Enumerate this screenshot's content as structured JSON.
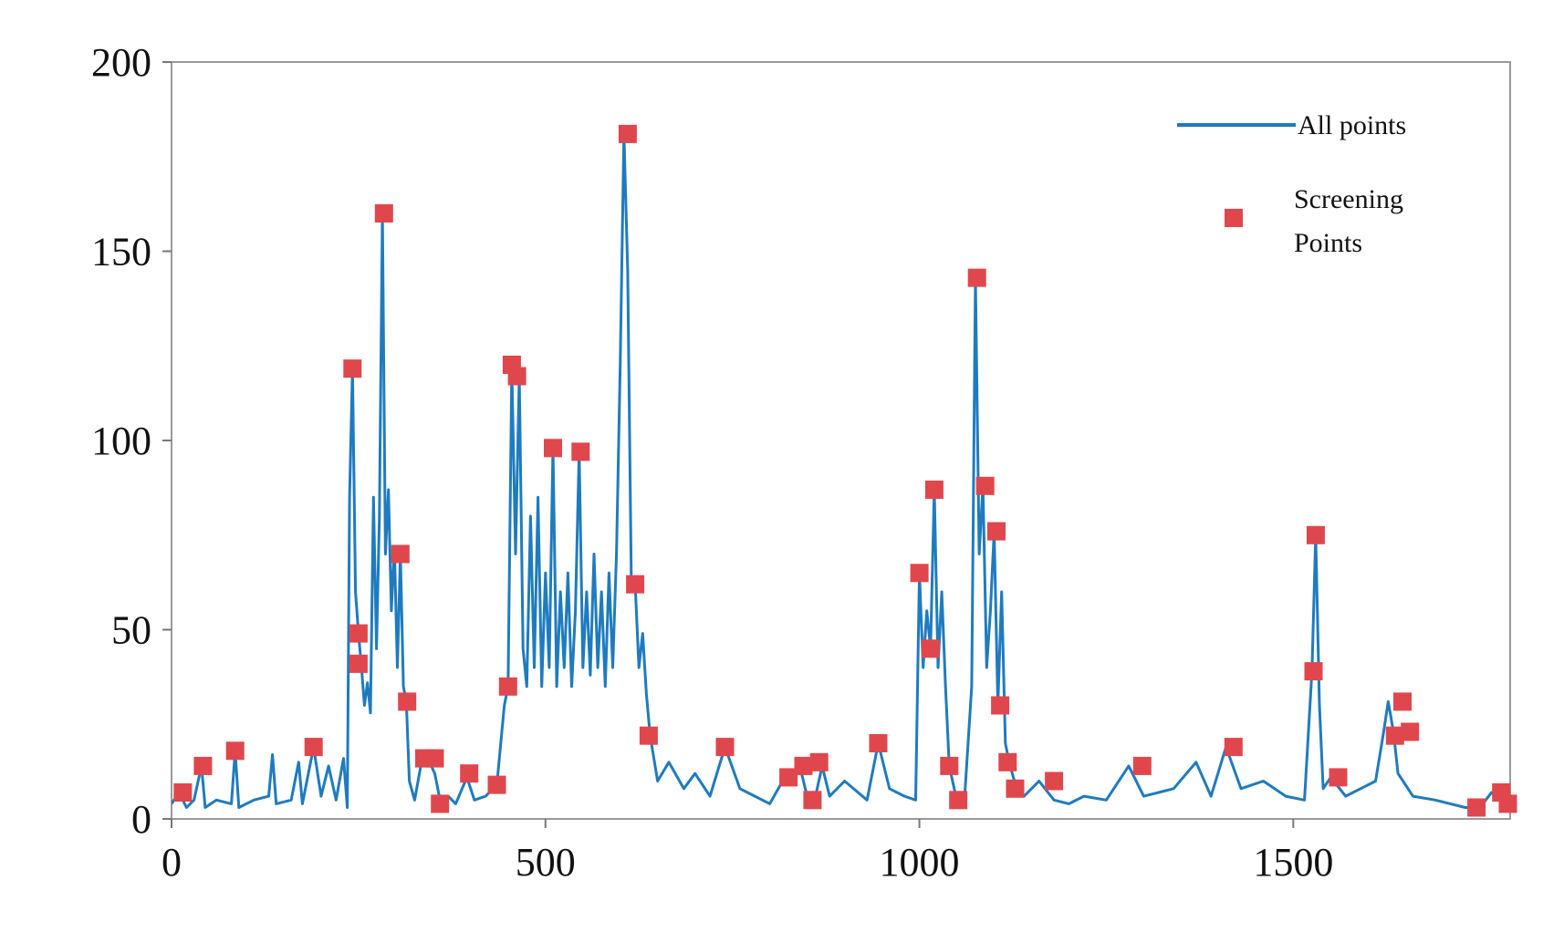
{
  "chart_data": {
    "type": "line",
    "title": "",
    "xlabel": "",
    "ylabel": "",
    "xlim": [
      0,
      1790
    ],
    "ylim": [
      0,
      200
    ],
    "x_ticks": [
      0,
      500,
      1000,
      1500
    ],
    "y_ticks": [
      0,
      50,
      100,
      150,
      200
    ],
    "x_tick_labels": [
      "0",
      "500",
      "1000",
      "1500"
    ],
    "y_tick_labels": [
      "0",
      "50",
      "100",
      "150",
      "200"
    ],
    "grid": false,
    "legend_position": "top-right",
    "colors": {
      "line": "#1f7bbf",
      "marker": "#e0474c"
    },
    "series": [
      {
        "name": "All points",
        "kind": "line",
        "points": [
          [
            0,
            4
          ],
          [
            10,
            7
          ],
          [
            20,
            3
          ],
          [
            30,
            5
          ],
          [
            40,
            14
          ],
          [
            45,
            3
          ],
          [
            60,
            5
          ],
          [
            80,
            4
          ],
          [
            85,
            18
          ],
          [
            90,
            3
          ],
          [
            110,
            5
          ],
          [
            130,
            6
          ],
          [
            135,
            17
          ],
          [
            140,
            4
          ],
          [
            160,
            5
          ],
          [
            170,
            15
          ],
          [
            175,
            4
          ],
          [
            190,
            19
          ],
          [
            200,
            6
          ],
          [
            210,
            14
          ],
          [
            220,
            5
          ],
          [
            230,
            16
          ],
          [
            235,
            3
          ],
          [
            238,
            85
          ],
          [
            242,
            119
          ],
          [
            246,
            60
          ],
          [
            250,
            49
          ],
          [
            254,
            40
          ],
          [
            258,
            30
          ],
          [
            262,
            36
          ],
          [
            266,
            28
          ],
          [
            270,
            85
          ],
          [
            274,
            45
          ],
          [
            278,
            80
          ],
          [
            282,
            160
          ],
          [
            286,
            70
          ],
          [
            290,
            87
          ],
          [
            294,
            55
          ],
          [
            298,
            72
          ],
          [
            302,
            40
          ],
          [
            306,
            70
          ],
          [
            310,
            35
          ],
          [
            314,
            31
          ],
          [
            318,
            10
          ],
          [
            325,
            5
          ],
          [
            335,
            16
          ],
          [
            345,
            15
          ],
          [
            352,
            12
          ],
          [
            360,
            4
          ],
          [
            370,
            6
          ],
          [
            380,
            4
          ],
          [
            395,
            11
          ],
          [
            405,
            5
          ],
          [
            420,
            6
          ],
          [
            435,
            9
          ],
          [
            445,
            30
          ],
          [
            450,
            35
          ],
          [
            455,
            119
          ],
          [
            460,
            70
          ],
          [
            465,
            117
          ],
          [
            470,
            45
          ],
          [
            475,
            35
          ],
          [
            480,
            80
          ],
          [
            485,
            40
          ],
          [
            490,
            85
          ],
          [
            495,
            35
          ],
          [
            500,
            65
          ],
          [
            505,
            40
          ],
          [
            510,
            98
          ],
          [
            515,
            35
          ],
          [
            520,
            60
          ],
          [
            525,
            40
          ],
          [
            530,
            65
          ],
          [
            535,
            35
          ],
          [
            540,
            55
          ],
          [
            545,
            97
          ],
          [
            550,
            40
          ],
          [
            555,
            60
          ],
          [
            560,
            38
          ],
          [
            565,
            70
          ],
          [
            570,
            40
          ],
          [
            575,
            60
          ],
          [
            580,
            35
          ],
          [
            585,
            65
          ],
          [
            590,
            40
          ],
          [
            595,
            70
          ],
          [
            600,
            120
          ],
          [
            605,
            181
          ],
          [
            610,
            145
          ],
          [
            615,
            60
          ],
          [
            620,
            62
          ],
          [
            625,
            40
          ],
          [
            630,
            49
          ],
          [
            635,
            33
          ],
          [
            640,
            22
          ],
          [
            650,
            10
          ],
          [
            665,
            15
          ],
          [
            685,
            8
          ],
          [
            700,
            12
          ],
          [
            720,
            6
          ],
          [
            740,
            19
          ],
          [
            760,
            8
          ],
          [
            780,
            6
          ],
          [
            800,
            4
          ],
          [
            820,
            11
          ],
          [
            840,
            14
          ],
          [
            850,
            6
          ],
          [
            860,
            5
          ],
          [
            870,
            14
          ],
          [
            880,
            6
          ],
          [
            900,
            10
          ],
          [
            930,
            5
          ],
          [
            945,
            20
          ],
          [
            960,
            8
          ],
          [
            980,
            6
          ],
          [
            995,
            5
          ],
          [
            1000,
            65
          ],
          [
            1005,
            40
          ],
          [
            1010,
            55
          ],
          [
            1015,
            45
          ],
          [
            1020,
            87
          ],
          [
            1025,
            40
          ],
          [
            1030,
            60
          ],
          [
            1035,
            35
          ],
          [
            1040,
            14
          ],
          [
            1050,
            5
          ],
          [
            1060,
            4
          ],
          [
            1070,
            35
          ],
          [
            1075,
            143
          ],
          [
            1080,
            70
          ],
          [
            1085,
            88
          ],
          [
            1090,
            40
          ],
          [
            1095,
            55
          ],
          [
            1100,
            76
          ],
          [
            1105,
            30
          ],
          [
            1110,
            60
          ],
          [
            1115,
            20
          ],
          [
            1120,
            15
          ],
          [
            1130,
            8
          ],
          [
            1140,
            6
          ],
          [
            1160,
            10
          ],
          [
            1180,
            5
          ],
          [
            1200,
            4
          ],
          [
            1220,
            6
          ],
          [
            1250,
            5
          ],
          [
            1280,
            14
          ],
          [
            1300,
            6
          ],
          [
            1340,
            8
          ],
          [
            1370,
            15
          ],
          [
            1390,
            6
          ],
          [
            1410,
            19
          ],
          [
            1430,
            8
          ],
          [
            1460,
            10
          ],
          [
            1490,
            6
          ],
          [
            1515,
            5
          ],
          [
            1525,
            39
          ],
          [
            1530,
            75
          ],
          [
            1535,
            30
          ],
          [
            1540,
            8
          ],
          [
            1550,
            11
          ],
          [
            1570,
            6
          ],
          [
            1590,
            8
          ],
          [
            1610,
            10
          ],
          [
            1620,
            22
          ],
          [
            1627,
            31
          ],
          [
            1634,
            23
          ],
          [
            1640,
            12
          ],
          [
            1660,
            6
          ],
          [
            1690,
            5
          ],
          [
            1710,
            4
          ],
          [
            1730,
            3
          ],
          [
            1750,
            3
          ],
          [
            1765,
            7
          ],
          [
            1775,
            5
          ],
          [
            1785,
            3
          ]
        ]
      },
      {
        "name": "Screening Points",
        "kind": "markers",
        "points": [
          [
            15,
            7
          ],
          [
            42,
            14
          ],
          [
            85,
            18
          ],
          [
            190,
            19
          ],
          [
            242,
            119
          ],
          [
            250,
            49
          ],
          [
            250,
            41
          ],
          [
            284,
            160
          ],
          [
            306,
            70
          ],
          [
            315,
            31
          ],
          [
            338,
            16
          ],
          [
            352,
            16
          ],
          [
            359,
            4
          ],
          [
            398,
            12
          ],
          [
            435,
            9
          ],
          [
            450,
            35
          ],
          [
            455,
            120
          ],
          [
            462,
            117
          ],
          [
            510,
            98
          ],
          [
            547,
            97
          ],
          [
            610,
            181
          ],
          [
            620,
            62
          ],
          [
            638,
            22
          ],
          [
            740,
            19
          ],
          [
            825,
            11
          ],
          [
            845,
            14
          ],
          [
            857,
            5
          ],
          [
            866,
            15
          ],
          [
            945,
            20
          ],
          [
            1000,
            65
          ],
          [
            1015,
            45
          ],
          [
            1020,
            87
          ],
          [
            1040,
            14
          ],
          [
            1052,
            5
          ],
          [
            1077,
            143
          ],
          [
            1088,
            88
          ],
          [
            1103,
            76
          ],
          [
            1108,
            30
          ],
          [
            1118,
            15
          ],
          [
            1128,
            8
          ],
          [
            1180,
            10
          ],
          [
            1298,
            14
          ],
          [
            1420,
            19
          ],
          [
            1527,
            39
          ],
          [
            1530,
            75
          ],
          [
            1560,
            11
          ],
          [
            1636,
            22
          ],
          [
            1646,
            31
          ],
          [
            1656,
            23
          ],
          [
            1745,
            3
          ],
          [
            1778,
            7
          ],
          [
            1787,
            4
          ]
        ]
      }
    ]
  },
  "legend": {
    "entries": [
      {
        "lines": [
          "All points"
        ]
      },
      {
        "lines": [
          "Screening",
          "Points"
        ]
      }
    ]
  }
}
